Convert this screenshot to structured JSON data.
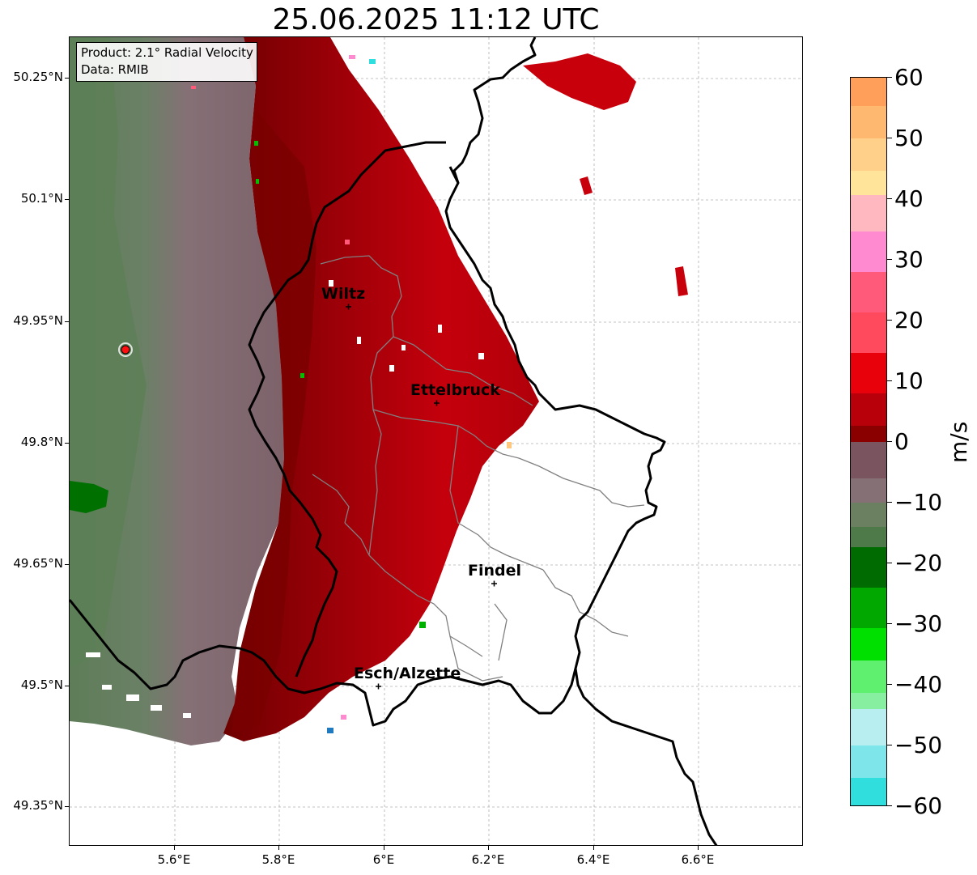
{
  "title": "25.06.2025 11:12 UTC",
  "product_box": {
    "line1": "Product: 2.1° Radial Velocity",
    "line2": "Data: RMIB"
  },
  "axes": {
    "lat_ticks": [
      "50.25°N",
      "50.1°N",
      "49.95°N",
      "49.8°N",
      "49.65°N",
      "49.5°N",
      "49.35°N"
    ],
    "lon_ticks": [
      "5.6°E",
      "5.8°E",
      "6°E",
      "6.2°E",
      "6.4°E",
      "6.6°E"
    ]
  },
  "cities": [
    {
      "name": "Wiltz"
    },
    {
      "name": "Ettelbruck"
    },
    {
      "name": "Findel"
    },
    {
      "name": "Esch/Alzette"
    }
  ],
  "radar_site_icon": "radar-site-marker",
  "colorbar": {
    "unit": "m/s",
    "ticks": [
      "60",
      "50",
      "40",
      "30",
      "20",
      "10",
      "0",
      "−10",
      "−20",
      "−30",
      "−40",
      "−50",
      "−60"
    ],
    "colors": {
      "orange": "#ff9f5a",
      "light_orange": "#ffc77e",
      "yellow": "#ffe49a",
      "pink": "#ff8ad0",
      "rose": "#ff5a7a",
      "red": "#e8000a",
      "dark_red": "#8a0000",
      "mauve": "#7a5560",
      "grey_green": "#6a8060",
      "dark_green": "#006b00",
      "green": "#00e000",
      "light_green": "#86f0a0",
      "pale_cyan": "#b8eef0",
      "cyan": "#30dede",
      "blue": "#1f7ac0"
    }
  }
}
